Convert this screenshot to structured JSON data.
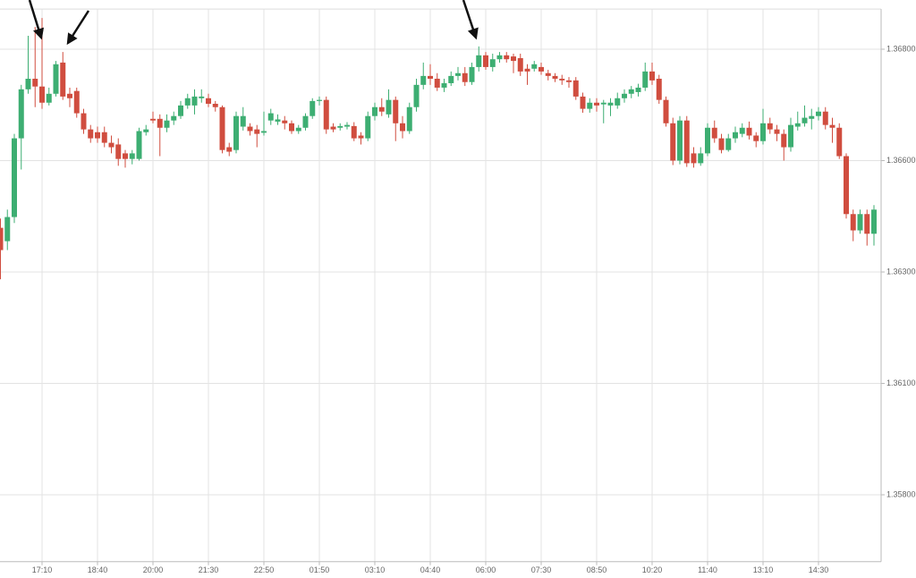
{
  "chart_data": {
    "type": "candlestick",
    "categories": [
      null,
      null,
      null,
      null,
      null,
      null,
      "17:10",
      null,
      null,
      null,
      null,
      null,
      null,
      null,
      "18:40",
      null,
      null,
      null,
      null,
      null,
      null,
      null,
      "20:00",
      null,
      null,
      null,
      null,
      null,
      null,
      null,
      "21:30",
      null,
      null,
      null,
      null,
      null,
      null,
      null,
      "22:50",
      null,
      null,
      null,
      null,
      null,
      null,
      null,
      "01:50",
      null,
      null,
      null,
      null,
      null,
      null,
      null,
      "03:10",
      null,
      null,
      null,
      null,
      null,
      null,
      null,
      "04:40",
      null,
      null,
      null,
      null,
      null,
      null,
      null,
      "06:00",
      null,
      null,
      null,
      null,
      null,
      null,
      null,
      "07:30",
      null,
      null,
      null,
      null,
      null,
      null,
      null,
      "08:50",
      null,
      null,
      null,
      null,
      null,
      null,
      null,
      "10:20",
      null,
      null,
      null,
      null,
      null,
      null,
      null,
      "11:40",
      null,
      null,
      null,
      null,
      null,
      null,
      null,
      "13:10",
      null,
      null,
      null,
      null,
      null,
      null,
      null,
      "14:30",
      null,
      null,
      null,
      null,
      null,
      null,
      null,
      null
    ],
    "open": [
      1.36419,
      1.36383,
      1.36448,
      1.3664,
      1.36728,
      1.36747,
      1.36733,
      1.36704,
      1.3672,
      1.36776,
      1.3672,
      1.36725,
      1.36685,
      1.36656,
      1.36651,
      1.36651,
      1.36632,
      1.36629,
      1.36613,
      1.36603,
      1.36603,
      1.36651,
      1.36675,
      1.36675,
      1.36659,
      1.36672,
      1.3668,
      1.36699,
      1.36699,
      1.36712,
      1.36712,
      1.36702,
      1.36696,
      1.36624,
      1.36619,
      1.36661,
      1.36661,
      1.36656,
      1.3665,
      1.36672,
      1.3667,
      1.36672,
      1.36667,
      1.36653,
      1.36659,
      1.3668,
      1.36707,
      1.36709,
      1.36661,
      1.36659,
      1.36661,
      1.36662,
      1.36645,
      1.3664,
      1.3668,
      1.36696,
      1.36683,
      1.36709,
      1.36667,
      1.36653,
      1.36696,
      1.36736,
      1.36752,
      1.36747,
      1.36731,
      1.36739,
      1.36752,
      1.36757,
      1.36741,
      1.36768,
      1.36789,
      1.36768,
      1.36782,
      1.36789,
      1.36787,
      1.36784,
      1.36765,
      1.36765,
      1.36768,
      1.36757,
      1.36752,
      1.36747,
      1.36744,
      1.36744,
      1.36715,
      1.36693,
      1.36704,
      1.36701,
      1.36699,
      1.36699,
      1.36712,
      1.3672,
      1.36723,
      1.36731,
      1.3676,
      1.36747,
      1.36709,
      1.36667,
      1.366,
      1.36672,
      1.36613,
      1.36593,
      1.36613,
      1.36659,
      1.3664,
      1.36619,
      1.3664,
      1.36648,
      1.36659,
      1.36645,
      1.36635,
      1.36667,
      1.36656,
      1.36648,
      1.36624,
      1.36661,
      1.36667,
      1.36675,
      1.3668,
      1.36688,
      1.36664,
      1.36659,
      1.36608,
      1.36456,
      1.36412,
      1.36456,
      1.36403
    ],
    "high": [
      1.36444,
      1.36468,
      1.36648,
      1.36736,
      1.36824,
      1.3684,
      1.36856,
      1.36731,
      1.36779,
      1.36795,
      1.36731,
      1.36731,
      1.36693,
      1.36664,
      1.36661,
      1.36661,
      1.36645,
      1.3664,
      1.36619,
      1.36619,
      1.36659,
      1.36664,
      1.36688,
      1.36683,
      1.36683,
      1.36688,
      1.36707,
      1.3672,
      1.36728,
      1.36728,
      1.3672,
      1.36707,
      1.36699,
      1.36632,
      1.36688,
      1.36696,
      1.36667,
      1.36664,
      1.36688,
      1.36693,
      1.36683,
      1.3668,
      1.36672,
      1.36664,
      1.36685,
      1.36712,
      1.36715,
      1.36715,
      1.36667,
      1.36667,
      1.36669,
      1.36669,
      1.36651,
      1.36688,
      1.36704,
      1.36712,
      1.36728,
      1.36715,
      1.3668,
      1.36704,
      1.36747,
      1.36776,
      1.36773,
      1.36757,
      1.36747,
      1.3676,
      1.36768,
      1.36768,
      1.36776,
      1.36805,
      1.36795,
      1.36792,
      1.36795,
      1.36795,
      1.36792,
      1.36792,
      1.36773,
      1.36779,
      1.36776,
      1.36763,
      1.36757,
      1.36754,
      1.3675,
      1.3675,
      1.36722,
      1.36712,
      1.36712,
      1.36709,
      1.36712,
      1.36722,
      1.36728,
      1.36734,
      1.36738,
      1.36776,
      1.36776,
      1.36754,
      1.36715,
      1.36677,
      1.3668,
      1.3668,
      1.36624,
      1.36624,
      1.36667,
      1.36672,
      1.36648,
      1.36648,
      1.36661,
      1.36667,
      1.3667,
      1.36651,
      1.36693,
      1.36677,
      1.36664,
      1.36656,
      1.36677,
      1.36688,
      1.36699,
      1.36693,
      1.36696,
      1.36696,
      1.36677,
      1.36667,
      1.36613,
      1.36468,
      1.36468,
      1.36468,
      1.3648
    ],
    "low": [
      1.36287,
      1.36359,
      1.36432,
      1.36576,
      1.3672,
      1.36696,
      1.36693,
      1.36699,
      1.36715,
      1.36709,
      1.36696,
      1.36677,
      1.36648,
      1.36632,
      1.36632,
      1.36624,
      1.36613,
      1.36586,
      1.36581,
      1.3659,
      1.366,
      1.36645,
      1.36667,
      1.36608,
      1.36651,
      1.36664,
      1.36675,
      1.36693,
      1.36683,
      1.36704,
      1.36696,
      1.36688,
      1.36613,
      1.36608,
      1.36613,
      1.36654,
      1.36645,
      1.36624,
      1.36645,
      1.36664,
      1.36664,
      1.36656,
      1.36648,
      1.36648,
      1.36654,
      1.36675,
      1.36699,
      1.36648,
      1.36651,
      1.36654,
      1.36656,
      1.36635,
      1.36629,
      1.36635,
      1.36672,
      1.3668,
      1.36677,
      1.36635,
      1.3664,
      1.36648,
      1.36688,
      1.36728,
      1.36736,
      1.36725,
      1.36723,
      1.36734,
      1.36744,
      1.36734,
      1.36736,
      1.3676,
      1.36763,
      1.3676,
      1.36776,
      1.36776,
      1.36757,
      1.36752,
      1.36736,
      1.3676,
      1.36754,
      1.36744,
      1.36741,
      1.36736,
      1.36731,
      1.36709,
      1.36686,
      1.36686,
      1.36688,
      1.36667,
      1.3668,
      1.36693,
      1.36704,
      1.36712,
      1.36715,
      1.36725,
      1.36736,
      1.36702,
      1.36661,
      1.36588,
      1.3659,
      1.36583,
      1.36581,
      1.36586,
      1.36608,
      1.36632,
      1.36613,
      1.36616,
      1.36632,
      1.36642,
      1.36638,
      1.36624,
      1.36629,
      1.36648,
      1.36635,
      1.366,
      1.36616,
      1.36654,
      1.36661,
      1.36656,
      1.36672,
      1.36656,
      1.36632,
      1.36603,
      1.36444,
      1.36383,
      1.36403,
      1.36371,
      1.36371
    ],
    "close": [
      1.36359,
      1.36448,
      1.3664,
      1.36728,
      1.36747,
      1.36733,
      1.36704,
      1.3672,
      1.36773,
      1.36715,
      1.36712,
      1.36685,
      1.36656,
      1.3664,
      1.3664,
      1.36632,
      1.36624,
      1.36603,
      1.36603,
      1.36613,
      1.36653,
      1.36656,
      1.36672,
      1.36659,
      1.36672,
      1.3668,
      1.36699,
      1.36712,
      1.36715,
      1.36715,
      1.36702,
      1.36696,
      1.36619,
      1.36616,
      1.3668,
      1.3668,
      1.36653,
      1.36648,
      1.36653,
      1.36685,
      1.36674,
      1.36667,
      1.36653,
      1.36659,
      1.3668,
      1.36707,
      1.36709,
      1.36656,
      1.36656,
      1.36662,
      1.36664,
      1.3664,
      1.3664,
      1.3668,
      1.36696,
      1.36688,
      1.36709,
      1.36667,
      1.36653,
      1.36696,
      1.36736,
      1.36752,
      1.36747,
      1.36731,
      1.36739,
      1.36752,
      1.36757,
      1.36741,
      1.36768,
      1.36789,
      1.36768,
      1.36782,
      1.36789,
      1.36782,
      1.36779,
      1.3676,
      1.3676,
      1.36773,
      1.3676,
      1.36752,
      1.36747,
      1.36744,
      1.36741,
      1.36715,
      1.36693,
      1.36704,
      1.36699,
      1.36704,
      1.36704,
      1.36712,
      1.3672,
      1.36728,
      1.36731,
      1.3676,
      1.36744,
      1.36709,
      1.36667,
      1.366,
      1.36672,
      1.36593,
      1.36593,
      1.36613,
      1.36659,
      1.3664,
      1.36619,
      1.3664,
      1.36651,
      1.36659,
      1.36645,
      1.36635,
      1.36667,
      1.36656,
      1.36648,
      1.36624,
      1.36664,
      1.36667,
      1.36677,
      1.3668,
      1.36688,
      1.36664,
      1.36659,
      1.36608,
      1.36456,
      1.36412,
      1.36456,
      1.36403,
      1.36468
    ],
    "up_color": "#3dae72",
    "down_color": "#d04d3f",
    "ylim": [
      1.3562,
      1.36872
    ],
    "yticks": [
      {
        "value": 1.368,
        "label": "1.36800"
      },
      {
        "value": 1.366,
        "label": "1.36600"
      },
      {
        "value": 1.363,
        "label": "1.36300"
      },
      {
        "value": 1.361,
        "label": "1.36100"
      },
      {
        "value": 1.358,
        "label": "1.35800"
      }
    ],
    "grid": true
  }
}
